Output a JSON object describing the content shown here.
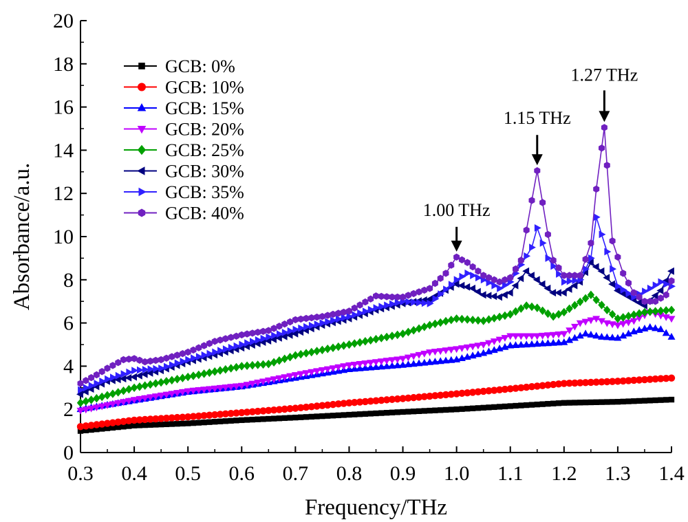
{
  "chart_data": {
    "type": "line",
    "title": "",
    "xlabel": "Frequency/THz",
    "ylabel": "Absorbance/a.u.",
    "xlim": [
      0.3,
      1.4
    ],
    "ylim": [
      0,
      20
    ],
    "x_ticks": [
      "0.3",
      "0.4",
      "0.5",
      "0.6",
      "0.7",
      "0.8",
      "0.9",
      "1.0",
      "1.1",
      "1.2",
      "1.3",
      "1.4"
    ],
    "y_ticks": [
      "0",
      "2",
      "4",
      "6",
      "8",
      "10",
      "12",
      "14",
      "16",
      "18",
      "20"
    ],
    "grid": false,
    "legend_position": "top-left",
    "x_step": 0.01,
    "x_start": 0.3,
    "series": [
      {
        "name": "GCB: 0%",
        "color": "#000000",
        "marker": "square",
        "points": [
          [
            0.3,
            1.0
          ],
          [
            0.4,
            1.25
          ],
          [
            0.5,
            1.35
          ],
          [
            0.6,
            1.5
          ],
          [
            0.7,
            1.62
          ],
          [
            0.8,
            1.75
          ],
          [
            0.9,
            1.88
          ],
          [
            1.0,
            2.0
          ],
          [
            1.1,
            2.15
          ],
          [
            1.2,
            2.3
          ],
          [
            1.3,
            2.35
          ],
          [
            1.4,
            2.45
          ]
        ]
      },
      {
        "name": "GCB: 10%",
        "color": "#ff0000",
        "marker": "circle",
        "points": [
          [
            0.3,
            1.2
          ],
          [
            0.4,
            1.5
          ],
          [
            0.5,
            1.65
          ],
          [
            0.6,
            1.85
          ],
          [
            0.7,
            2.05
          ],
          [
            0.8,
            2.3
          ],
          [
            0.9,
            2.5
          ],
          [
            1.0,
            2.72
          ],
          [
            1.1,
            2.95
          ],
          [
            1.2,
            3.2
          ],
          [
            1.3,
            3.3
          ],
          [
            1.4,
            3.45
          ]
        ]
      },
      {
        "name": "GCB: 15%",
        "color": "#0000ff",
        "marker": "triangle-up",
        "points": [
          [
            0.3,
            2.0
          ],
          [
            0.4,
            2.4
          ],
          [
            0.5,
            2.8
          ],
          [
            0.6,
            3.05
          ],
          [
            0.7,
            3.45
          ],
          [
            0.8,
            3.85
          ],
          [
            0.9,
            4.05
          ],
          [
            1.0,
            4.3
          ],
          [
            1.05,
            4.6
          ],
          [
            1.1,
            4.95
          ],
          [
            1.2,
            5.1
          ],
          [
            1.24,
            5.5
          ],
          [
            1.27,
            5.35
          ],
          [
            1.3,
            5.3
          ],
          [
            1.33,
            5.6
          ],
          [
            1.36,
            5.8
          ],
          [
            1.38,
            5.7
          ],
          [
            1.4,
            5.35
          ]
        ]
      },
      {
        "name": "GCB: 20%",
        "color": "#c000ff",
        "marker": "triangle-down",
        "points": [
          [
            0.3,
            1.95
          ],
          [
            0.4,
            2.45
          ],
          [
            0.5,
            2.85
          ],
          [
            0.6,
            3.1
          ],
          [
            0.7,
            3.6
          ],
          [
            0.8,
            4.05
          ],
          [
            0.9,
            4.35
          ],
          [
            0.95,
            4.65
          ],
          [
            1.0,
            4.8
          ],
          [
            1.05,
            5.0
          ],
          [
            1.1,
            5.4
          ],
          [
            1.15,
            5.4
          ],
          [
            1.2,
            5.5
          ],
          [
            1.23,
            6.0
          ],
          [
            1.26,
            6.2
          ],
          [
            1.28,
            6.0
          ],
          [
            1.3,
            5.9
          ],
          [
            1.33,
            6.1
          ],
          [
            1.36,
            6.5
          ],
          [
            1.4,
            6.2
          ]
        ]
      },
      {
        "name": "GCB: 25%",
        "color": "#00a000",
        "marker": "diamond",
        "points": [
          [
            0.3,
            2.3
          ],
          [
            0.4,
            3.0
          ],
          [
            0.5,
            3.5
          ],
          [
            0.6,
            4.0
          ],
          [
            0.65,
            4.1
          ],
          [
            0.7,
            4.5
          ],
          [
            0.8,
            5.0
          ],
          [
            0.9,
            5.5
          ],
          [
            0.95,
            5.9
          ],
          [
            1.0,
            6.2
          ],
          [
            1.05,
            6.1
          ],
          [
            1.1,
            6.4
          ],
          [
            1.13,
            6.8
          ],
          [
            1.15,
            6.7
          ],
          [
            1.18,
            6.3
          ],
          [
            1.2,
            6.5
          ],
          [
            1.25,
            7.3
          ],
          [
            1.28,
            6.6
          ],
          [
            1.3,
            6.2
          ],
          [
            1.35,
            6.5
          ],
          [
            1.4,
            6.6
          ]
        ]
      },
      {
        "name": "GCB: 30%",
        "color": "#000080",
        "marker": "triangle-left",
        "points": [
          [
            0.3,
            2.7
          ],
          [
            0.35,
            3.3
          ],
          [
            0.4,
            3.5
          ],
          [
            0.45,
            3.8
          ],
          [
            0.5,
            4.2
          ],
          [
            0.6,
            4.85
          ],
          [
            0.7,
            5.5
          ],
          [
            0.75,
            5.9
          ],
          [
            0.8,
            6.2
          ],
          [
            0.85,
            6.6
          ],
          [
            0.9,
            6.9
          ],
          [
            0.95,
            7.1
          ],
          [
            1.0,
            7.8
          ],
          [
            1.03,
            7.6
          ],
          [
            1.05,
            7.3
          ],
          [
            1.08,
            7.2
          ],
          [
            1.1,
            7.4
          ],
          [
            1.13,
            8.4
          ],
          [
            1.15,
            8.0
          ],
          [
            1.18,
            7.4
          ],
          [
            1.2,
            7.4
          ],
          [
            1.23,
            7.9
          ],
          [
            1.25,
            8.8
          ],
          [
            1.27,
            8.4
          ],
          [
            1.3,
            7.5
          ],
          [
            1.35,
            6.8
          ],
          [
            1.38,
            7.5
          ],
          [
            1.4,
            8.4
          ]
        ]
      },
      {
        "name": "GCB: 35%",
        "color": "#3020ff",
        "marker": "triangle-right",
        "points": [
          [
            0.3,
            2.9
          ],
          [
            0.35,
            3.4
          ],
          [
            0.4,
            3.8
          ],
          [
            0.45,
            3.9
          ],
          [
            0.5,
            4.3
          ],
          [
            0.6,
            5.0
          ],
          [
            0.7,
            5.7
          ],
          [
            0.75,
            6.0
          ],
          [
            0.8,
            6.3
          ],
          [
            0.85,
            6.7
          ],
          [
            0.9,
            7.0
          ],
          [
            0.95,
            6.9
          ],
          [
            1.0,
            8.0
          ],
          [
            1.02,
            8.3
          ],
          [
            1.05,
            8.0
          ],
          [
            1.08,
            7.6
          ],
          [
            1.1,
            7.9
          ],
          [
            1.12,
            8.7
          ],
          [
            1.14,
            9.5
          ],
          [
            1.15,
            10.4
          ],
          [
            1.17,
            9.0
          ],
          [
            1.2,
            7.9
          ],
          [
            1.23,
            8.0
          ],
          [
            1.25,
            9.0
          ],
          [
            1.26,
            10.9
          ],
          [
            1.28,
            9.3
          ],
          [
            1.3,
            7.7
          ],
          [
            1.33,
            7.2
          ],
          [
            1.36,
            7.6
          ],
          [
            1.38,
            7.9
          ],
          [
            1.4,
            7.7
          ]
        ]
      },
      {
        "name": "GCB: 40%",
        "color": "#7020c0",
        "marker": "hexagon",
        "points": [
          [
            0.3,
            3.2
          ],
          [
            0.33,
            3.6
          ],
          [
            0.35,
            3.9
          ],
          [
            0.38,
            4.3
          ],
          [
            0.4,
            4.35
          ],
          [
            0.42,
            4.2
          ],
          [
            0.45,
            4.3
          ],
          [
            0.5,
            4.65
          ],
          [
            0.55,
            5.15
          ],
          [
            0.6,
            5.45
          ],
          [
            0.65,
            5.65
          ],
          [
            0.7,
            6.15
          ],
          [
            0.75,
            6.3
          ],
          [
            0.8,
            6.55
          ],
          [
            0.85,
            7.25
          ],
          [
            0.88,
            7.2
          ],
          [
            0.9,
            7.2
          ],
          [
            0.95,
            7.6
          ],
          [
            0.98,
            8.3
          ],
          [
            1.0,
            9.05
          ],
          [
            1.02,
            8.8
          ],
          [
            1.05,
            8.2
          ],
          [
            1.08,
            7.9
          ],
          [
            1.1,
            8.1
          ],
          [
            1.12,
            8.9
          ],
          [
            1.13,
            10.3
          ],
          [
            1.15,
            13.05
          ],
          [
            1.17,
            10.1
          ],
          [
            1.18,
            8.9
          ],
          [
            1.2,
            8.2
          ],
          [
            1.23,
            8.2
          ],
          [
            1.25,
            9.7
          ],
          [
            1.26,
            12.2
          ],
          [
            1.275,
            15.05
          ],
          [
            1.29,
            9.8
          ],
          [
            1.31,
            8.3
          ],
          [
            1.33,
            7.4
          ],
          [
            1.35,
            7.0
          ],
          [
            1.37,
            7.0
          ],
          [
            1.39,
            7.3
          ],
          [
            1.4,
            7.95
          ]
        ]
      }
    ],
    "annotations": [
      {
        "text": "1.00 THz",
        "x": 1.0,
        "y": 9.05
      },
      {
        "text": "1.15 THz",
        "x": 1.15,
        "y": 13.05
      },
      {
        "text": "1.27 THz",
        "x": 1.275,
        "y": 15.05
      }
    ]
  }
}
